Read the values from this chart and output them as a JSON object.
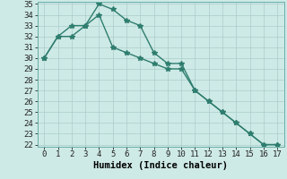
{
  "x": [
    0,
    1,
    2,
    3,
    4,
    5,
    6,
    7,
    8,
    9,
    10,
    11,
    12,
    13,
    14,
    15,
    16,
    17
  ],
  "line1": [
    30,
    32,
    33,
    33,
    35,
    34.5,
    33.5,
    33,
    30.5,
    29.5,
    29.5,
    27,
    26,
    25,
    24,
    23,
    22,
    22
  ],
  "line2": [
    30,
    32,
    32,
    33,
    34,
    31,
    30.5,
    30,
    29.5,
    29,
    29,
    27,
    26,
    25,
    24,
    23,
    22,
    22
  ],
  "line_color": "#2e7d6e",
  "bg_color": "#ceeae6",
  "grid_color": "#aacccc",
  "xlabel": "Humidex (Indice chaleur)",
  "ylim": [
    22,
    35
  ],
  "xlim": [
    -0.5,
    17.5
  ],
  "yticks": [
    22,
    23,
    24,
    25,
    26,
    27,
    28,
    29,
    30,
    31,
    32,
    33,
    34,
    35
  ],
  "xticks": [
    0,
    1,
    2,
    3,
    4,
    5,
    6,
    7,
    8,
    9,
    10,
    11,
    12,
    13,
    14,
    15,
    16,
    17
  ],
  "marker": "*",
  "marker_size": 4,
  "line_width": 1.0,
  "font_size": 6.5,
  "xlabel_fontsize": 7.5
}
